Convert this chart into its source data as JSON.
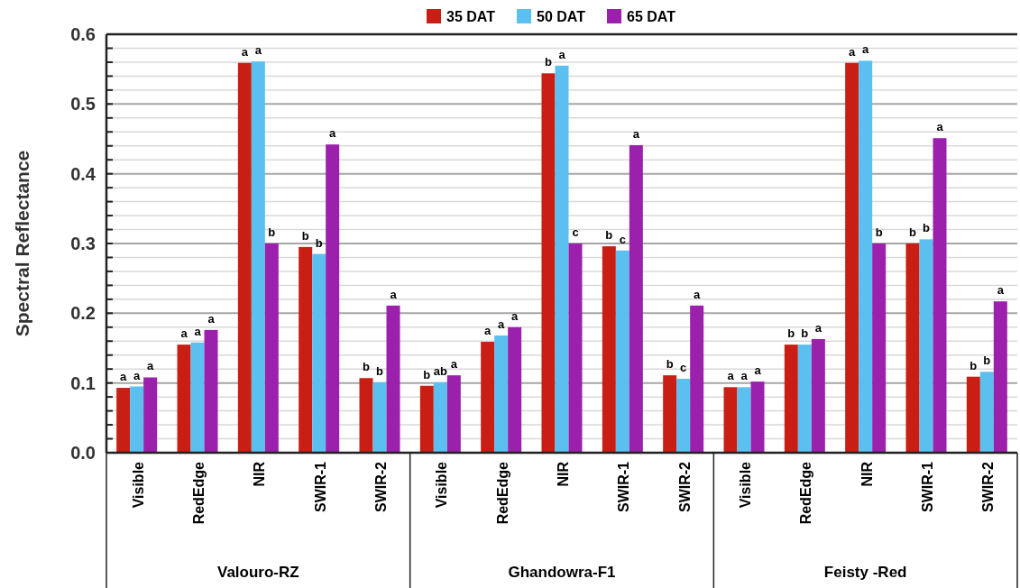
{
  "chart_data": {
    "type": "bar",
    "ylabel": "Spectral Reflectance",
    "categories": [
      "Visible",
      "RedEdge",
      "NIR",
      "SWIR-1",
      "SWIR-2",
      "Visible",
      "RedEdge",
      "NIR",
      "SWIR-1",
      "SWIR-2",
      "Visible",
      "RedEdge",
      "NIR",
      "SWIR-1",
      "SWIR-2"
    ],
    "annotations": [
      "Valouro-RZ",
      "Ghandowra-F1",
      "Feisty -Red"
    ],
    "series": [
      {
        "name": "35 DAT",
        "color": "#c81e14",
        "values": [
          0.093,
          0.155,
          0.559,
          0.295,
          0.107,
          0.096,
          0.159,
          0.544,
          0.296,
          0.111,
          0.094,
          0.155,
          0.559,
          0.3,
          0.109
        ],
        "value_labels": [
          "a",
          "a",
          "a",
          "b",
          "b",
          "b",
          "a",
          "b",
          "b",
          "b",
          "a",
          "b",
          "a",
          "b",
          "b"
        ]
      },
      {
        "name": "50 DAT",
        "color": "#5bbff0",
        "values": [
          0.095,
          0.158,
          0.561,
          0.285,
          0.101,
          0.101,
          0.168,
          0.555,
          0.29,
          0.106,
          0.094,
          0.155,
          0.562,
          0.306,
          0.116
        ],
        "value_labels": [
          "a",
          "a",
          "a",
          "b",
          "b",
          "ab",
          "a",
          "a",
          "c",
          "c",
          "a",
          "b",
          "a",
          "b",
          "b"
        ]
      },
      {
        "name": "65 DAT",
        "color": "#9b20ab",
        "values": [
          0.108,
          0.176,
          0.3,
          0.442,
          0.211,
          0.111,
          0.18,
          0.3,
          0.441,
          0.211,
          0.102,
          0.163,
          0.3,
          0.451,
          0.217
        ],
        "value_labels": [
          "a",
          "a",
          "b",
          "a",
          "a",
          "a",
          "a",
          "c",
          "a",
          "a",
          "a",
          "a",
          "b",
          "a",
          "a"
        ]
      }
    ],
    "ylim": [
      0,
      0.6
    ],
    "yticks": [
      {
        "value": 0,
        "label": "0.0"
      },
      {
        "value": 0.02,
        "label": null
      },
      {
        "value": 0.04,
        "label": null
      },
      {
        "value": 0.06,
        "label": null
      },
      {
        "value": 0.08,
        "label": null
      },
      {
        "value": 0.1,
        "label": "0.1"
      },
      {
        "value": 0.12,
        "label": null
      },
      {
        "value": 0.14,
        "label": null
      },
      {
        "value": 0.16,
        "label": null
      },
      {
        "value": 0.18,
        "label": null
      },
      {
        "value": 0.2,
        "label": "0.2"
      },
      {
        "value": 0.22,
        "label": null
      },
      {
        "value": 0.24,
        "label": null
      },
      {
        "value": 0.26,
        "label": null
      },
      {
        "value": 0.28,
        "label": null
      },
      {
        "value": 0.3,
        "label": "0.3"
      },
      {
        "value": 0.32,
        "label": null
      },
      {
        "value": 0.34,
        "label": null
      },
      {
        "value": 0.36,
        "label": null
      },
      {
        "value": 0.38,
        "label": null
      },
      {
        "value": 0.4,
        "label": "0.4"
      },
      {
        "value": 0.42,
        "label": null
      },
      {
        "value": 0.44,
        "label": null
      },
      {
        "value": 0.46,
        "label": null
      },
      {
        "value": 0.48,
        "label": null
      },
      {
        "value": 0.5,
        "label": "0.5"
      },
      {
        "value": 0.52,
        "label": null
      },
      {
        "value": 0.54,
        "label": null
      },
      {
        "value": 0.56,
        "label": null
      },
      {
        "value": 0.58,
        "label": null
      },
      {
        "value": 0.6,
        "label": "0.6"
      }
    ],
    "grid": true,
    "legend": "top"
  }
}
